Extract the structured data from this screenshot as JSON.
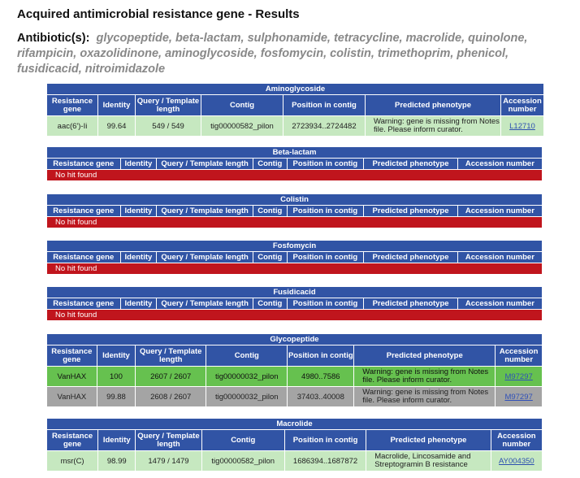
{
  "page": {
    "title": "Acquired antimicrobial resistance gene - Results",
    "antibiotics_label": "Antibiotic(s):",
    "antibiotics_list": "glycopeptide, beta-lactam, sulphonamide, tetracycline, macrolide, quinolone, rifampicin, oxazolidinone, aminoglycoside, fosfomycin, colistin, trimethoprim, phenicol, fusidicacid, nitroimidazole"
  },
  "colors": {
    "header_blue": "#3154a5",
    "no_hit_red": "#c0151d",
    "perfect_match_green": "#66c14f",
    "light_green": "#c6e8c0",
    "partial_grey": "#a4a4a4"
  },
  "aminoglycoside": {
    "title": "Aminoglycoside",
    "headers": [
      "Resistance gene",
      "Identity",
      "Query / Template length",
      "Contig",
      "Position in contig",
      "Predicted phenotype",
      "Accession number"
    ],
    "rows": [
      {
        "gene": "aac(6')-Ii",
        "identity": "99.64",
        "length": "549 / 549",
        "contig": "tig00000582_pilon",
        "position": "2723934..2724482",
        "phenotype": "Warning: gene is missing from Notes file. Please inform curator.",
        "accession": "L12710"
      }
    ]
  },
  "beta_lactam": {
    "title": "Beta-lactam",
    "headers": [
      "Resistance gene",
      "Identity",
      "Query / Template length",
      "Contig",
      "Position in contig",
      "Predicted phenotype",
      "Accession number"
    ],
    "no_hit": "No hit found"
  },
  "colistin": {
    "title": "Colistin",
    "headers": [
      "Resistance gene",
      "Identity",
      "Query / Template length",
      "Contig",
      "Position in contig",
      "Predicted phenotype",
      "Accession number"
    ],
    "no_hit": "No hit found"
  },
  "fosfomycin": {
    "title": "Fosfomycin",
    "headers": [
      "Resistance gene",
      "Identity",
      "Query / Template length",
      "Contig",
      "Position in contig",
      "Predicted phenotype",
      "Accession number"
    ],
    "no_hit": "No hit found"
  },
  "fusidicacid": {
    "title": "Fusidicacid",
    "headers": [
      "Resistance gene",
      "Identity",
      "Query / Template length",
      "Contig",
      "Position in contig",
      "Predicted phenotype",
      "Accession number"
    ],
    "no_hit": "No hit found"
  },
  "glycopeptide": {
    "title": "Glycopeptide",
    "headers": [
      "Resistance gene",
      "Identity",
      "Query / Template length",
      "Contig",
      "Position in contig",
      "Predicted phenotype",
      "Accession number"
    ],
    "rows": [
      {
        "gene": "VanHAX",
        "identity": "100",
        "length": "2607 / 2607",
        "contig": "tig00000032_pilon",
        "position": "4980..7586",
        "phenotype": "Warning: gene is missing from Notes file. Please inform curator.",
        "accession": "M97297"
      },
      {
        "gene": "VanHAX",
        "identity": "99.88",
        "length": "2608 / 2607",
        "contig": "tig00000032_pilon",
        "position": "37403..40008",
        "phenotype": "Warning: gene is missing from Notes file. Please inform curator.",
        "accession": "M97297"
      }
    ]
  },
  "macrolide": {
    "title": "Macrolide",
    "headers": [
      "Resistance gene",
      "Identity",
      "Query / Template length",
      "Contig",
      "Position in contig",
      "Predicted phenotype",
      "Accession number"
    ],
    "rows": [
      {
        "gene": "msr(C)",
        "identity": "98.99",
        "length": "1479 / 1479",
        "contig": "tig00000582_pilon",
        "position": "1686394..1687872",
        "phenotype": "Macrolide, Lincosamide and Streptogramin B resistance",
        "accession": "AY004350"
      }
    ]
  }
}
